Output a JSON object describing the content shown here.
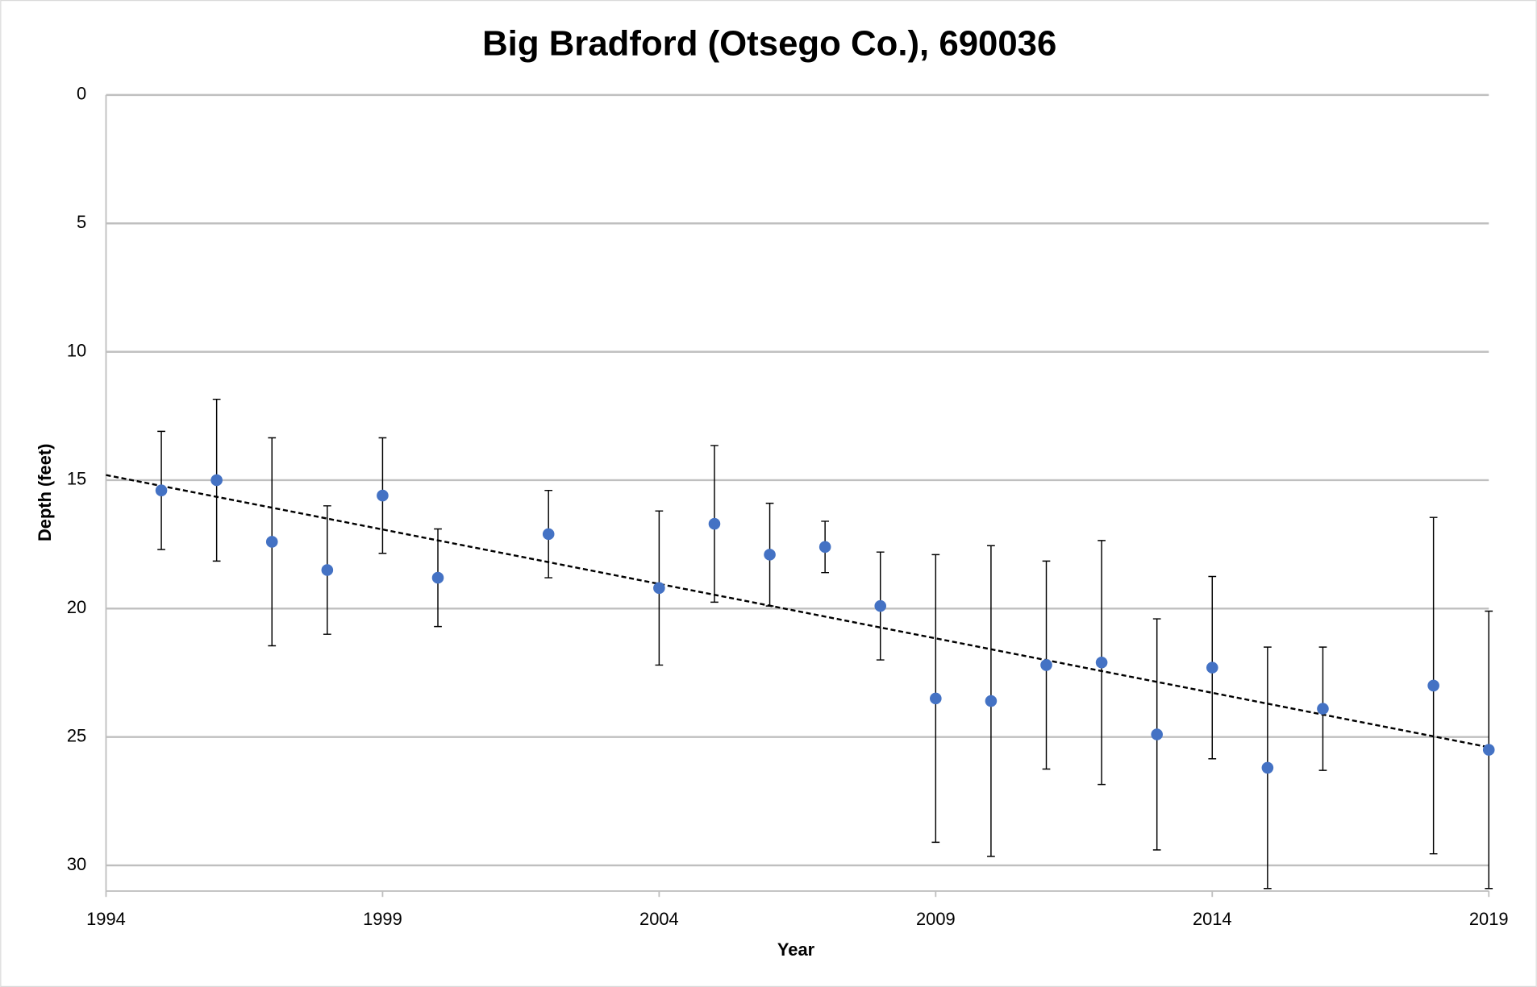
{
  "chart_data": {
    "type": "scatter",
    "title": "Big Bradford (Otsego Co.), 690036",
    "x_label": "Year",
    "y_label": "Depth (feet)",
    "x": [
      1995,
      1996,
      1997,
      1998,
      1999,
      2000,
      2002,
      2004,
      2005,
      2006,
      2007,
      2008,
      2009,
      2010,
      2011,
      2012,
      2013,
      2014,
      2015,
      2016,
      2018,
      2019
    ],
    "series": [
      {
        "color": "#4472c4",
        "values": [
          15.4,
          15.0,
          17.4,
          18.5,
          15.6,
          18.8,
          17.1,
          19.2,
          16.7,
          17.9,
          17.6,
          19.9,
          23.5,
          23.6,
          22.2,
          22.1,
          24.9,
          22.3,
          26.2,
          23.9,
          23.0,
          25.5
        ],
        "errors": [
          2.3,
          3.15,
          4.05,
          2.5,
          2.25,
          1.9,
          1.7,
          3.0,
          3.05,
          2.0,
          1.0,
          2.1,
          5.6,
          6.05,
          4.05,
          4.75,
          4.5,
          3.55,
          4.7,
          2.4,
          6.55,
          5.4
        ]
      }
    ],
    "trendline": {
      "x": [
        1994,
        2019
      ],
      "values": [
        14.8,
        25.4
      ],
      "color": "#000000"
    },
    "xlim": [
      1994,
      2019
    ],
    "xticks": [
      1994,
      1999,
      2004,
      2009,
      2014,
      2019
    ],
    "ylim": [
      0,
      31
    ],
    "yticks": [
      0,
      5,
      10,
      15,
      20,
      25,
      30
    ],
    "y_inverted": true,
    "grid": true
  }
}
